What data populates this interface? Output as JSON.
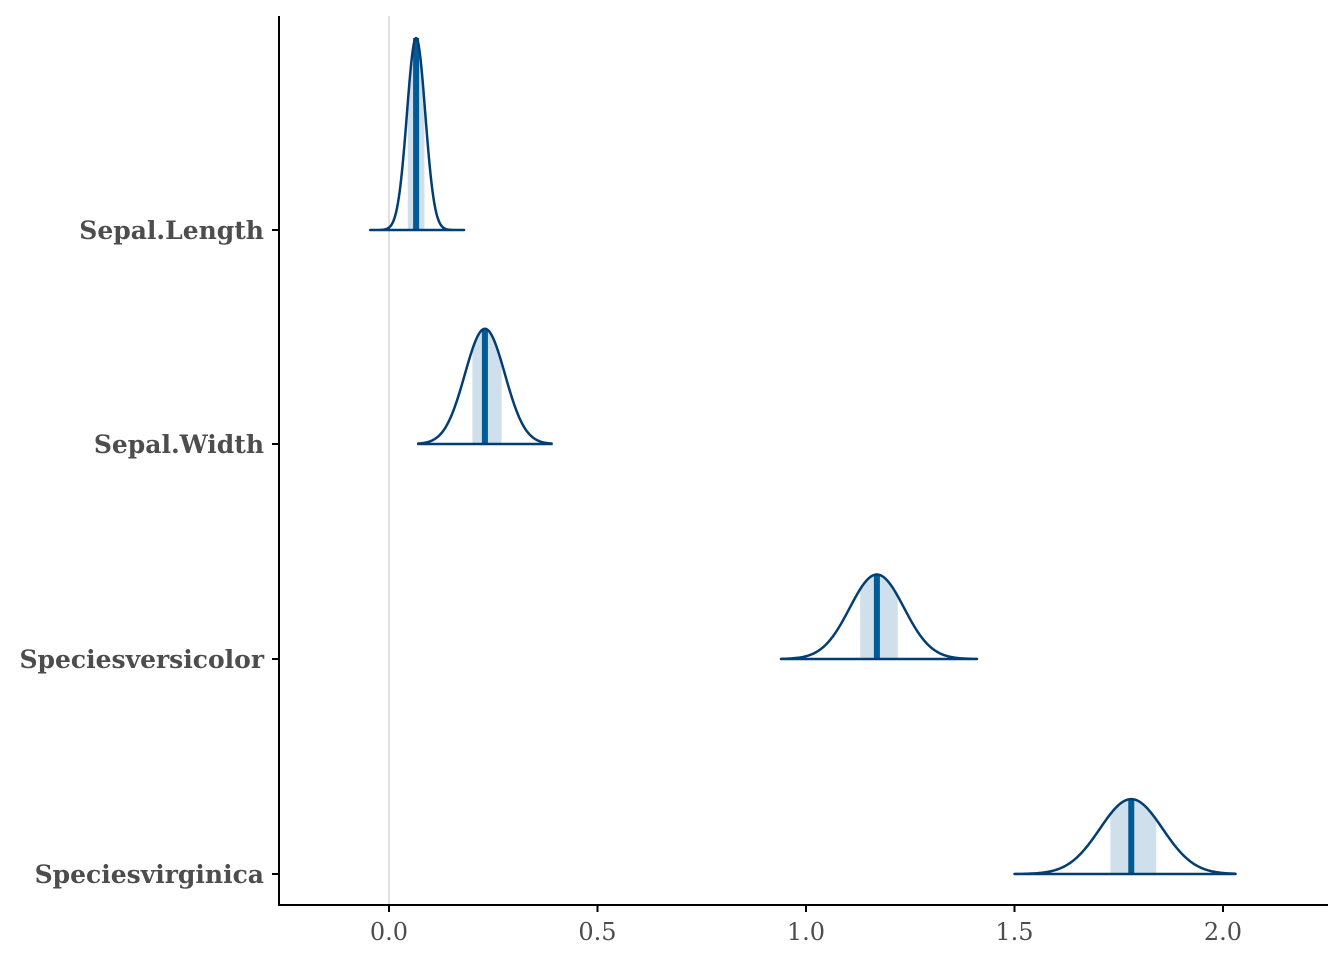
{
  "chart_data": {
    "type": "ridgeline",
    "title": "",
    "xlabel": "",
    "ylabel": "",
    "xlim": [
      -0.23,
      2.25
    ],
    "x_ticks": [
      0.0,
      0.5,
      1.0,
      1.5,
      2.0
    ],
    "x_tick_labels": [
      "0.0",
      "0.5",
      "1.0",
      "1.5",
      "2.0"
    ],
    "reference_line_x": 0,
    "grid": false,
    "colors": {
      "outline": "#023e73",
      "median": "#005b96",
      "interval": "#cfdfeb",
      "reference": "#e0e0e0",
      "axis": "#000000"
    },
    "series": [
      {
        "name": "Sepal.Length",
        "median": 0.065,
        "interval": [
          0.045,
          0.085
        ],
        "range": [
          -0.045,
          0.18
        ],
        "sd": 0.022,
        "peak_height": 1.0
      },
      {
        "name": "Sepal.Width",
        "median": 0.23,
        "interval": [
          0.2,
          0.27
        ],
        "range": [
          0.07,
          0.39
        ],
        "sd": 0.048,
        "peak_height": 0.6
      },
      {
        "name": "Speciesversicolor",
        "median": 1.17,
        "interval": [
          1.13,
          1.22
        ],
        "range": [
          0.94,
          1.41
        ],
        "sd": 0.065,
        "peak_height": 0.44
      },
      {
        "name": "Speciesvirginica",
        "median": 1.78,
        "interval": [
          1.73,
          1.84
        ],
        "range": [
          1.5,
          2.03
        ],
        "sd": 0.075,
        "peak_height": 0.39
      }
    ]
  }
}
